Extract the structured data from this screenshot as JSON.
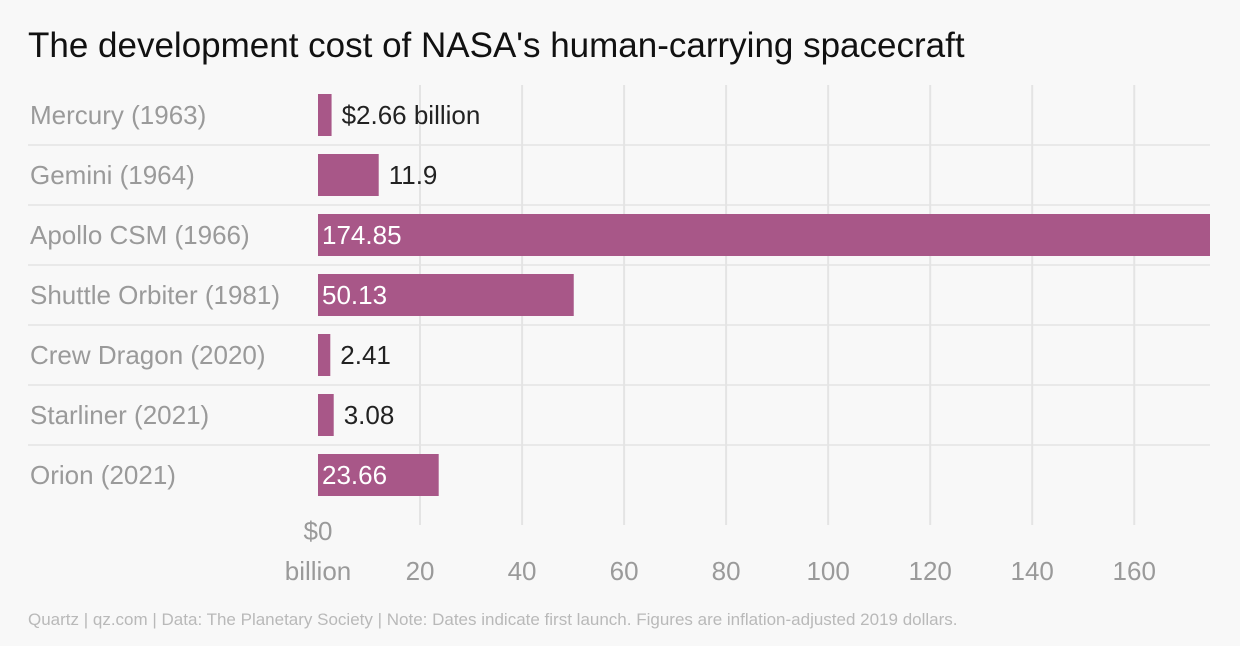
{
  "title": "The development cost of NASA's human-carrying spacecraft",
  "footer": "Quartz | qz.com | Data: The Planetary Society | Note: Dates indicate first launch. Figures are inflation-adjusted 2019 dollars.",
  "colors": {
    "bar": "#a85788",
    "grid": "#e4e4e4",
    "label": "#9a9a9a",
    "value_dark": "#222222",
    "value_light": "#ffffff"
  },
  "chart_data": {
    "type": "bar",
    "orientation": "horizontal",
    "categories": [
      "Mercury (1963)",
      "Gemini (1964)",
      "Apollo CSM (1966)",
      "Shuttle Orbiter (1981)",
      "Crew Dragon (2020)",
      "Starliner (2021)",
      "Orion (2021)"
    ],
    "values": [
      2.66,
      11.9,
      174.85,
      50.13,
      2.41,
      3.08,
      23.66
    ],
    "value_labels": [
      "$2.66 billion",
      "11.9",
      "174.85",
      "50.13",
      "2.41",
      "3.08",
      "23.66"
    ],
    "xlim": [
      0,
      174.85
    ],
    "xticks": [
      0,
      20,
      40,
      60,
      80,
      100,
      120,
      140,
      160
    ],
    "xtick_labels": [
      "$0\nbillion",
      "20",
      "40",
      "60",
      "80",
      "100",
      "120",
      "140",
      "160"
    ],
    "grid": true,
    "xlabel": "",
    "ylabel": ""
  }
}
